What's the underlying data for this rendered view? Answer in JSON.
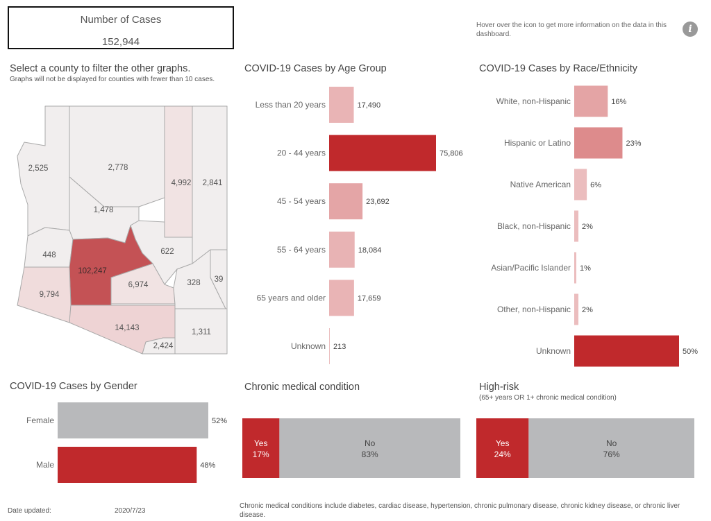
{
  "kpi": {
    "label": "Number of Cases",
    "value": "152,944"
  },
  "info": {
    "text": "Hover over the icon to get more information on the data in this dashboard.",
    "icon": "info-icon"
  },
  "map": {
    "title": "Select a county to filter the other graphs.",
    "subtitle": "Graphs will not be displayed for counties with fewer than 10 cases.",
    "counties": [
      {
        "label": "2,525",
        "fill": "#f1eeee"
      },
      {
        "label": "2,778",
        "fill": "#f1eeee"
      },
      {
        "label": "4,992",
        "fill": "#f1e3e3"
      },
      {
        "label": "2,841",
        "fill": "#f1eeee"
      },
      {
        "label": "1,478",
        "fill": "#f1eeee"
      },
      {
        "label": "622",
        "fill": "#f1eeee"
      },
      {
        "label": "448",
        "fill": "#f1eeee"
      },
      {
        "label": "102,247",
        "fill": "#c45255"
      },
      {
        "label": "6,974",
        "fill": "#f1e3e3"
      },
      {
        "label": "9,794",
        "fill": "#f0dcdc"
      },
      {
        "label": "328",
        "fill": "#f1eeee"
      },
      {
        "label": "39",
        "fill": "#f1eeee"
      },
      {
        "label": "14,143",
        "fill": "#eed3d4"
      },
      {
        "label": "2,424",
        "fill": "#f1eeee"
      },
      {
        "label": "1,311",
        "fill": "#f1eeee"
      }
    ]
  },
  "age": {
    "title": "COVID-19 Cases by Age Group",
    "color": "#c0292c",
    "rows": [
      {
        "label": "Less than 20 years",
        "value": 17490,
        "text": "17,490"
      },
      {
        "label": "20 - 44 years",
        "value": 75806,
        "text": "75,806"
      },
      {
        "label": "45 - 54 years",
        "value": 23692,
        "text": "23,692"
      },
      {
        "label": "55 - 64 years",
        "value": 18084,
        "text": "18,084"
      },
      {
        "label": "65 years and older",
        "value": 17659,
        "text": "17,659"
      },
      {
        "label": "Unknown",
        "value": 213,
        "text": "213"
      }
    ]
  },
  "race": {
    "title": "COVID-19 Cases by Race/Ethnicity",
    "color": "#c0292c",
    "rows": [
      {
        "label": "White, non-Hispanic",
        "value": 16,
        "text": "16%"
      },
      {
        "label": "Hispanic or Latino",
        "value": 23,
        "text": "23%"
      },
      {
        "label": "Native American",
        "value": 6,
        "text": "6%"
      },
      {
        "label": "Black, non-Hispanic",
        "value": 2,
        "text": "2%"
      },
      {
        "label": "Asian/Pacific Islander",
        "value": 1,
        "text": "1%"
      },
      {
        "label": "Other, non-Hispanic",
        "value": 2,
        "text": "2%"
      },
      {
        "label": "Unknown",
        "value": 50,
        "text": "50%"
      }
    ]
  },
  "gender": {
    "title": "COVID-19 Cases by Gender",
    "rows": [
      {
        "label": "Female",
        "value": 52,
        "text": "52%",
        "color": "#b8b9bb"
      },
      {
        "label": "Male",
        "value": 48,
        "text": "48%",
        "color": "#c0292c"
      }
    ]
  },
  "chronic": {
    "title": "Chronic medical condition",
    "yes": {
      "label": "Yes",
      "value": 17,
      "text": "17%",
      "color": "#c0292c"
    },
    "no": {
      "label": "No",
      "value": 83,
      "text": "83%",
      "color": "#b8b9bb"
    }
  },
  "highrisk": {
    "title": "High-risk",
    "subtitle": "(65+ years OR 1+ chronic medical condition)",
    "yes": {
      "label": "Yes",
      "value": 24,
      "text": "24%",
      "color": "#c0292c"
    },
    "no": {
      "label": "No",
      "value": 76,
      "text": "76%",
      "color": "#b8b9bb"
    }
  },
  "footer": {
    "date_label": "Date updated:",
    "date_value": "2020/7/23",
    "note": "Chronic medical conditions include diabetes, cardiac disease, hypertension, chronic pulmonary disease, chronic kidney disease, or chronic liver disease."
  }
}
